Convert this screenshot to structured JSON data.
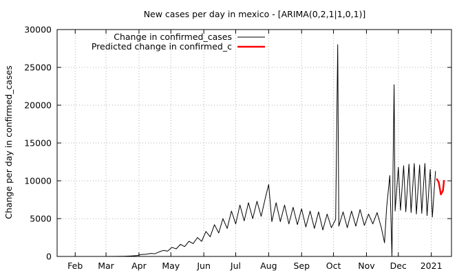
{
  "chart_data": {
    "type": "line",
    "title": "New cases per day in mexico -  [ARIMA(0,2,1|1,0,1)]",
    "xlabel": "",
    "ylabel": "Change per day in confirmed_cases",
    "ylim": [
      0,
      30000
    ],
    "y_ticks": [
      0,
      5000,
      10000,
      15000,
      20000,
      25000,
      30000
    ],
    "x_range": [
      "2020-01-15",
      "2021-01-20"
    ],
    "x_ticks": [
      {
        "date": "2020-02-01",
        "label": "Feb"
      },
      {
        "date": "2020-03-01",
        "label": "Mar"
      },
      {
        "date": "2020-04-01",
        "label": "Apr"
      },
      {
        "date": "2020-05-01",
        "label": "May"
      },
      {
        "date": "2020-06-01",
        "label": "Jun"
      },
      {
        "date": "2020-07-01",
        "label": "Jul"
      },
      {
        "date": "2020-08-01",
        "label": "Aug"
      },
      {
        "date": "2020-09-01",
        "label": "Sep"
      },
      {
        "date": "2020-10-01",
        "label": "Oct"
      },
      {
        "date": "2020-11-01",
        "label": "Nov"
      },
      {
        "date": "2020-12-01",
        "label": "Dec"
      },
      {
        "date": "2021-01-01",
        "label": "2021"
      }
    ],
    "grid": true,
    "legend_position": "top-left",
    "series": [
      {
        "name": "Change in confirmed_cases",
        "color": "#000000",
        "points": [
          [
            "2020-02-28",
            0
          ],
          [
            "2020-03-10",
            5
          ],
          [
            "2020-03-18",
            30
          ],
          [
            "2020-03-25",
            60
          ],
          [
            "2020-03-30",
            120
          ],
          [
            "2020-04-03",
            250
          ],
          [
            "2020-04-08",
            300
          ],
          [
            "2020-04-12",
            400
          ],
          [
            "2020-04-16",
            350
          ],
          [
            "2020-04-20",
            600
          ],
          [
            "2020-04-24",
            800
          ],
          [
            "2020-04-28",
            700
          ],
          [
            "2020-05-02",
            1200
          ],
          [
            "2020-05-06",
            1000
          ],
          [
            "2020-05-10",
            1600
          ],
          [
            "2020-05-14",
            1300
          ],
          [
            "2020-05-18",
            2000
          ],
          [
            "2020-05-22",
            1700
          ],
          [
            "2020-05-26",
            2500
          ],
          [
            "2020-05-30",
            2000
          ],
          [
            "2020-06-03",
            3300
          ],
          [
            "2020-06-07",
            2600
          ],
          [
            "2020-06-11",
            4200
          ],
          [
            "2020-06-15",
            3100
          ],
          [
            "2020-06-19",
            5000
          ],
          [
            "2020-06-23",
            3700
          ],
          [
            "2020-06-27",
            6000
          ],
          [
            "2020-07-01",
            4300
          ],
          [
            "2020-07-05",
            6800
          ],
          [
            "2020-07-09",
            4700
          ],
          [
            "2020-07-13",
            7100
          ],
          [
            "2020-07-17",
            5000
          ],
          [
            "2020-07-21",
            7300
          ],
          [
            "2020-07-25",
            5300
          ],
          [
            "2020-07-29",
            7800
          ],
          [
            "2020-08-01",
            9500
          ],
          [
            "2020-08-04",
            4600
          ],
          [
            "2020-08-08",
            7100
          ],
          [
            "2020-08-12",
            4600
          ],
          [
            "2020-08-16",
            6800
          ],
          [
            "2020-08-20",
            4300
          ],
          [
            "2020-08-24",
            6500
          ],
          [
            "2020-08-28",
            4200
          ],
          [
            "2020-09-01",
            6300
          ],
          [
            "2020-09-05",
            3900
          ],
          [
            "2020-09-09",
            6000
          ],
          [
            "2020-09-13",
            3700
          ],
          [
            "2020-09-17",
            5900
          ],
          [
            "2020-09-21",
            3500
          ],
          [
            "2020-09-25",
            5600
          ],
          [
            "2020-09-29",
            3800
          ],
          [
            "2020-10-03",
            4900
          ],
          [
            "2020-10-05",
            28000
          ],
          [
            "2020-10-06",
            4000
          ],
          [
            "2020-10-10",
            5900
          ],
          [
            "2020-10-14",
            3800
          ],
          [
            "2020-10-18",
            6000
          ],
          [
            "2020-10-22",
            4000
          ],
          [
            "2020-10-26",
            6200
          ],
          [
            "2020-10-30",
            4100
          ],
          [
            "2020-11-03",
            5600
          ],
          [
            "2020-11-07",
            4300
          ],
          [
            "2020-11-11",
            5800
          ],
          [
            "2020-11-15",
            3800
          ],
          [
            "2020-11-18",
            1800
          ],
          [
            "2020-11-20",
            6500
          ],
          [
            "2020-11-23",
            10700
          ],
          [
            "2020-11-25",
            0
          ],
          [
            "2020-11-27",
            22700
          ],
          [
            "2020-11-28",
            6000
          ],
          [
            "2020-12-01",
            11800
          ],
          [
            "2020-12-03",
            6100
          ],
          [
            "2020-12-06",
            12000
          ],
          [
            "2020-12-08",
            5900
          ],
          [
            "2020-12-11",
            12200
          ],
          [
            "2020-12-13",
            5800
          ],
          [
            "2020-12-16",
            12300
          ],
          [
            "2020-12-18",
            5600
          ],
          [
            "2020-12-21",
            12100
          ],
          [
            "2020-12-23",
            5700
          ],
          [
            "2020-12-26",
            12300
          ],
          [
            "2020-12-28",
            5400
          ],
          [
            "2020-12-31",
            11500
          ],
          [
            "2021-01-02",
            5200
          ],
          [
            "2021-01-05",
            11300
          ]
        ]
      },
      {
        "name": "Predicted change in confirmed_c",
        "color": "#ff0000",
        "points": [
          [
            "2021-01-06",
            10300
          ],
          [
            "2021-01-08",
            9800
          ],
          [
            "2021-01-10",
            8200
          ],
          [
            "2021-01-12",
            8700
          ],
          [
            "2021-01-13",
            10100
          ]
        ]
      }
    ]
  }
}
